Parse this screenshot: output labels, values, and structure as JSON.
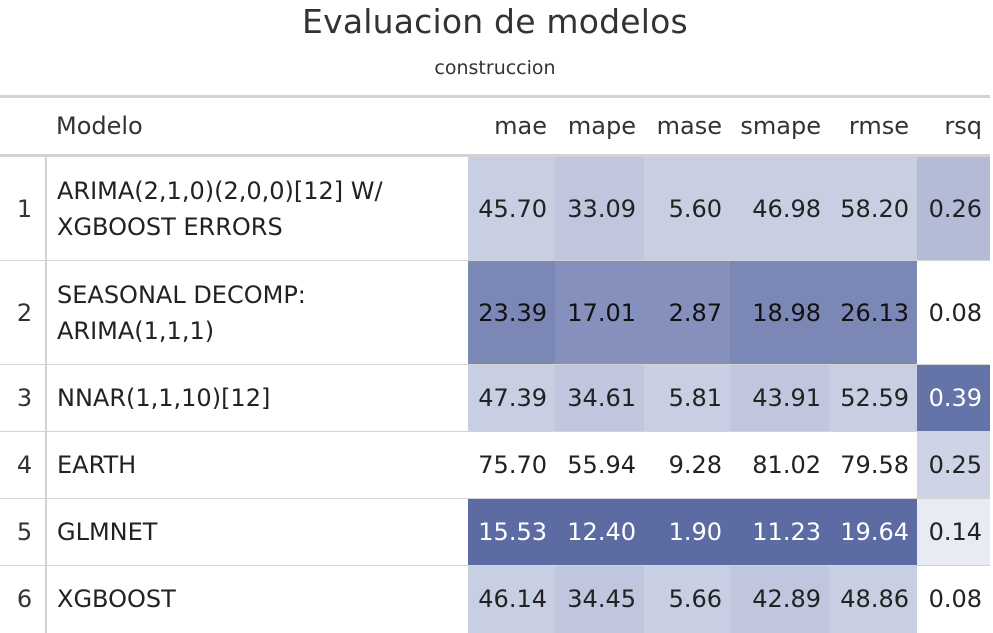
{
  "title": "Evaluacion de modelos",
  "subtitle": "construccion",
  "columns": {
    "rowname": "",
    "model": "Modelo",
    "mae": "mae",
    "mape": "mape",
    "mase": "mase",
    "smape": "smape",
    "rmse": "rmse",
    "rsq": "rsq"
  },
  "rows": [
    {
      "id": "1",
      "model": "ARIMA(2,1,0)(2,0,0)[12] W/ XGBOOST ERRORS",
      "mae": "45.70",
      "mape": "33.09",
      "mase": "5.60",
      "smape": "46.98",
      "rmse": "58.20",
      "rsq": "0.26"
    },
    {
      "id": "2",
      "model": "SEASONAL DECOMP: ARIMA(1,1,1)",
      "mae": "23.39",
      "mape": "17.01",
      "mase": "2.87",
      "smape": "18.98",
      "rmse": "26.13",
      "rsq": "0.08"
    },
    {
      "id": "3",
      "model": "NNAR(1,1,10)[12]",
      "mae": "47.39",
      "mape": "34.61",
      "mase": "5.81",
      "smape": "43.91",
      "rmse": "52.59",
      "rsq": "0.39"
    },
    {
      "id": "4",
      "model": "EARTH",
      "mae": "75.70",
      "mape": "55.94",
      "mase": "9.28",
      "smape": "81.02",
      "rmse": "79.58",
      "rsq": "0.25"
    },
    {
      "id": "5",
      "model": "GLMNET",
      "mae": "15.53",
      "mape": "12.40",
      "mase": "1.90",
      "smape": "11.23",
      "rmse": "19.64",
      "rsq": "0.14"
    },
    {
      "id": "6",
      "model": "XGBOOST",
      "mae": "46.14",
      "mape": "34.45",
      "mase": "5.66",
      "smape": "42.89",
      "rmse": "48.86",
      "rsq": "0.08"
    }
  ],
  "colors": {
    "heat_dark": "#5c6ca3",
    "heat_mid": "#7b87b5",
    "heat_light": "#c8cfe2",
    "border": "#d3d3d3"
  }
}
